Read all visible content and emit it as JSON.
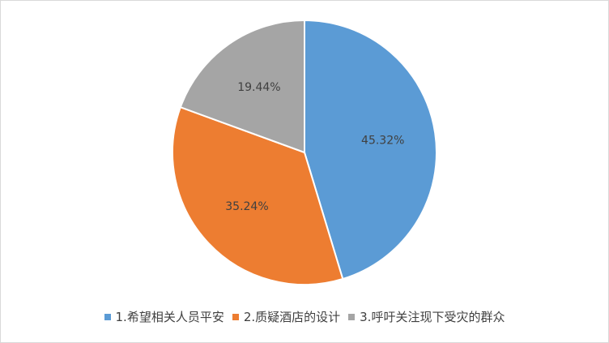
{
  "chart_data": {
    "type": "pie",
    "title": "",
    "start_angle_deg": 0,
    "direction": "clockwise",
    "legend_position": "bottom",
    "slices": [
      {
        "label": "1.希望相关人员平安",
        "value": 45.32,
        "value_label": "45.32%",
        "color": "#5b9bd5"
      },
      {
        "label": "2.质疑酒店的设计",
        "value": 35.24,
        "value_label": "35.24%",
        "color": "#ed7d31"
      },
      {
        "label": "3.呼吁关注现下受灾的群众",
        "value": 19.44,
        "value_label": "19.44%",
        "color": "#a5a5a5"
      }
    ]
  }
}
